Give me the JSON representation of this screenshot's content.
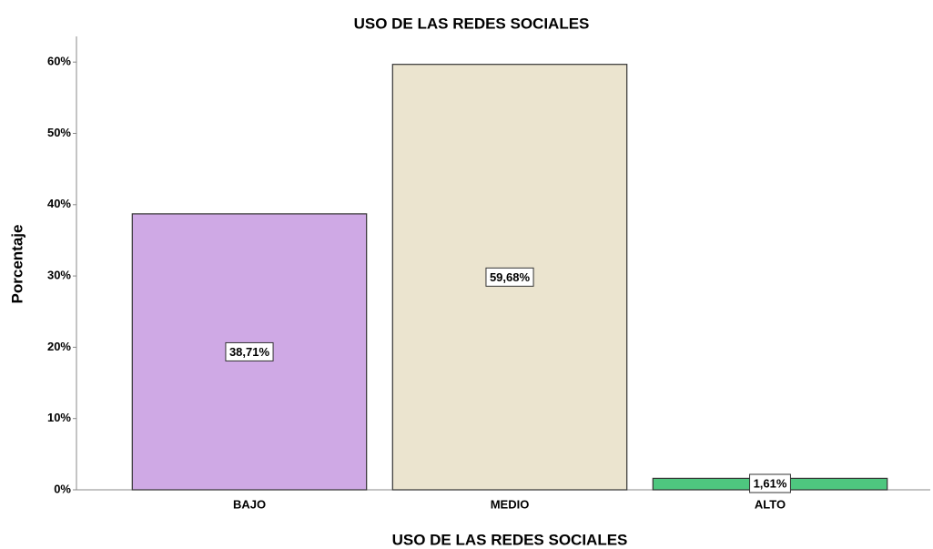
{
  "chart_data": {
    "type": "bar",
    "title": "USO DE LAS REDES SOCIALES",
    "x_label": "USO DE LAS REDES SOCIALES",
    "y_label": "Porcentaje",
    "categories": [
      "BAJO",
      "MEDIO",
      "ALTO"
    ],
    "values": [
      38.71,
      59.68,
      1.61
    ],
    "value_labels": [
      "38,71%",
      "59,68%",
      "1,61%"
    ],
    "colors": [
      "#cfa9e5",
      "#ebe4cf",
      "#4ec77f"
    ],
    "ylim": [
      0,
      63.6
    ],
    "yticks": [
      {
        "value": 0,
        "label": "0%"
      },
      {
        "value": 10,
        "label": "10%"
      },
      {
        "value": 20,
        "label": "20%"
      },
      {
        "value": 30,
        "label": "30%"
      },
      {
        "value": 40,
        "label": "40%"
      },
      {
        "value": 50,
        "label": "50%"
      },
      {
        "value": 60,
        "label": "60%"
      }
    ],
    "grid": false
  }
}
